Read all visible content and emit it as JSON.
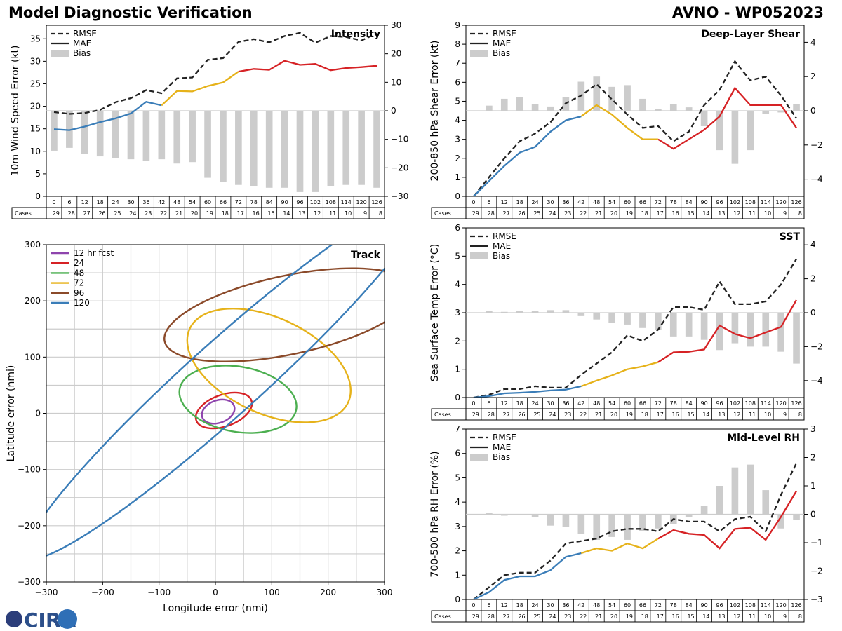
{
  "header": {
    "title_left": "Model Diagnostic Verification",
    "title_right": "AVNO - WP052023"
  },
  "logo": {
    "text": "CIRA"
  },
  "colors": {
    "rmse": "#222222",
    "bias": "#cccccc",
    "blue": "#3a7db8",
    "yellow": "#e6b21a",
    "red": "#d62225",
    "grid": "#cccccc"
  },
  "legend": {
    "rmse": "RMSE",
    "mae": "MAE",
    "bias": "Bias"
  },
  "cases_label": "Cases",
  "hours": [
    "0",
    "6",
    "12",
    "18",
    "24",
    "30",
    "36",
    "42",
    "48",
    "54",
    "60",
    "66",
    "72",
    "78",
    "84",
    "90",
    "96",
    "102",
    "108",
    "114",
    "120",
    "126"
  ],
  "cases": [
    "29",
    "28",
    "27",
    "26",
    "25",
    "24",
    "23",
    "22",
    "21",
    "20",
    "19",
    "18",
    "17",
    "16",
    "15",
    "14",
    "13",
    "12",
    "11",
    "10",
    "9",
    "8"
  ],
  "chart_data": [
    {
      "id": "intensity",
      "type": "line",
      "title": "Intensity",
      "ylabel": "10m Wind Speed Error (kt)",
      "ylim": [
        0,
        38
      ],
      "yticks": [
        "0",
        "5",
        "10",
        "15",
        "20",
        "25",
        "30",
        "35"
      ],
      "y2lim": [
        -30,
        30
      ],
      "y2ticks": [
        "−30",
        "−20",
        "−10",
        "0",
        "10",
        "20",
        "30"
      ],
      "rmse": [
        18.7,
        18.3,
        18.5,
        19.2,
        20.9,
        21.8,
        23.6,
        22.9,
        26.2,
        26.4,
        30.3,
        30.7,
        34.3,
        34.9,
        34.2,
        35.6,
        36.3,
        34.1,
        35.6,
        35.4,
        34.6,
        36.2
      ],
      "mae": [
        14.9,
        14.7,
        15.5,
        16.5,
        17.3,
        18.4,
        21.0,
        20.2,
        23.4,
        23.3,
        24.5,
        25.3,
        27.7,
        28.3,
        28.1,
        30.1,
        29.2,
        29.4,
        28.0,
        28.5,
        28.7,
        29.0
      ],
      "bias": [
        -14,
        -13,
        -15,
        -16,
        -16.5,
        -17,
        -17.5,
        -17,
        -18.5,
        -18,
        -23.5,
        -25,
        -26,
        -26.5,
        -27,
        -27,
        -28.5,
        -28.5,
        -26.5,
        -26,
        -26,
        -27
      ]
    },
    {
      "id": "shear",
      "type": "line",
      "title": "Deep-Layer Shear",
      "ylabel": "200-850 hPa Shear Error (kt)",
      "ylim": [
        0,
        9
      ],
      "yticks": [
        "0",
        "1",
        "2",
        "3",
        "4",
        "5",
        "6",
        "7",
        "8",
        "9"
      ],
      "y2lim": [
        -5,
        5
      ],
      "y2ticks": [
        "−4",
        "−2",
        "0",
        "2",
        "4"
      ],
      "rmse": [
        0.0,
        1.0,
        2.0,
        2.9,
        3.3,
        3.9,
        4.9,
        5.3,
        5.9,
        5.1,
        4.3,
        3.6,
        3.7,
        2.9,
        3.4,
        4.8,
        5.6,
        7.1,
        6.1,
        6.3,
        5.3,
        4.1
      ],
      "mae": [
        0.0,
        0.8,
        1.6,
        2.3,
        2.6,
        3.4,
        4.0,
        4.2,
        4.8,
        4.3,
        3.6,
        3.0,
        3.0,
        2.5,
        3.0,
        3.5,
        4.2,
        5.7,
        4.8,
        4.8,
        4.8,
        3.6
      ],
      "bias": [
        0,
        0.3,
        0.7,
        0.8,
        0.4,
        0.25,
        0.8,
        1.7,
        2.0,
        1.4,
        1.5,
        0.7,
        0.1,
        0.4,
        0.2,
        -0.9,
        -2.3,
        -3.1,
        -2.3,
        -0.2,
        -0.1,
        0.4
      ]
    },
    {
      "id": "sst",
      "type": "line",
      "title": "SST",
      "ylabel": "Sea Surface Temp Error (°C)",
      "ylim": [
        0,
        6
      ],
      "yticks": [
        "0",
        "1",
        "2",
        "3",
        "4",
        "5",
        "6"
      ],
      "y2lim": [
        -5,
        5
      ],
      "y2ticks": [
        "−4",
        "−2",
        "0",
        "2",
        "4"
      ],
      "rmse": [
        0.0,
        0.1,
        0.3,
        0.3,
        0.4,
        0.35,
        0.35,
        0.8,
        1.2,
        1.6,
        2.2,
        2.0,
        2.4,
        3.2,
        3.2,
        3.1,
        4.1,
        3.3,
        3.3,
        3.4,
        4.0,
        4.9
      ],
      "mae": [
        0.0,
        0.05,
        0.15,
        0.17,
        0.2,
        0.25,
        0.28,
        0.4,
        0.6,
        0.78,
        1.0,
        1.1,
        1.25,
        1.6,
        1.62,
        1.7,
        2.55,
        2.25,
        2.1,
        2.3,
        2.5,
        3.45
      ],
      "bias": [
        0,
        0.1,
        0.05,
        0.1,
        0.1,
        0.15,
        0.15,
        -0.2,
        -0.4,
        -0.6,
        -0.7,
        -0.9,
        -1.0,
        -1.4,
        -1.4,
        -1.6,
        -2.2,
        -1.8,
        -2.0,
        -2.0,
        -2.3,
        -3.0
      ]
    },
    {
      "id": "rh",
      "type": "line",
      "title": "Mid-Level RH",
      "ylabel": "700-500 hPa RH Error (%)",
      "ylim": [
        0,
        7
      ],
      "yticks": [
        "0",
        "1",
        "2",
        "3",
        "4",
        "5",
        "6",
        "7"
      ],
      "y2lim": [
        -3,
        3
      ],
      "y2ticks": [
        "−3",
        "−2",
        "−1",
        "0",
        "1",
        "2",
        "3"
      ],
      "rmse": [
        0.0,
        0.5,
        1.0,
        1.1,
        1.1,
        1.6,
        2.3,
        2.4,
        2.5,
        2.8,
        2.9,
        2.9,
        2.8,
        3.3,
        3.2,
        3.2,
        2.8,
        3.3,
        3.4,
        2.8,
        4.3,
        5.6
      ],
      "mae": [
        0.0,
        0.3,
        0.8,
        0.95,
        0.95,
        1.2,
        1.75,
        1.9,
        2.1,
        2.0,
        2.3,
        2.1,
        2.5,
        2.85,
        2.7,
        2.65,
        2.1,
        2.9,
        2.95,
        2.45,
        3.4,
        4.45
      ],
      "bias": [
        0,
        0.05,
        -0.05,
        0,
        -0.1,
        -0.4,
        -0.45,
        -0.7,
        -0.9,
        -0.8,
        -0.9,
        -0.6,
        -0.5,
        -0.35,
        -0.1,
        0.3,
        1.0,
        1.65,
        1.75,
        0.85,
        -0.5,
        -0.2
      ]
    },
    {
      "id": "track",
      "type": "ellipse",
      "title": "Track",
      "xlabel": "Longitude error (nmi)",
      "ylabel": "Latitude error (nmi)",
      "xlim": [
        -300,
        300
      ],
      "ylim": [
        -300,
        300
      ],
      "xticks": [
        "−300",
        "−200",
        "−100",
        "0",
        "100",
        "200",
        "300"
      ],
      "yticks": [
        "−300",
        "−200",
        "−100",
        "0",
        "100",
        "200",
        "300"
      ],
      "ellipses": [
        {
          "label": "12 hr fcst",
          "color": "#8e44ad",
          "cx": 5,
          "cy": 3,
          "rx": 30,
          "ry": 20,
          "angle": 20
        },
        {
          "label": "24",
          "color": "#d62225",
          "cx": 15,
          "cy": 5,
          "rx": 52,
          "ry": 28,
          "angle": 20
        },
        {
          "label": "48",
          "color": "#4caf50",
          "cx": 40,
          "cy": 25,
          "rx": 105,
          "ry": 58,
          "angle": -10
        },
        {
          "label": "72",
          "color": "#e6b21a",
          "cx": 95,
          "cy": 85,
          "rx": 155,
          "ry": 85,
          "angle": -25
        },
        {
          "label": "96",
          "color": "#8b4a2a",
          "cx": 130,
          "cy": 175,
          "rx": 225,
          "ry": 70,
          "angle": 12
        },
        {
          "label": "120",
          "color": "#3a7db8",
          "cx": 15,
          "cy": 60,
          "rx": 470,
          "ry": 65,
          "angle": 42
        }
      ]
    }
  ]
}
